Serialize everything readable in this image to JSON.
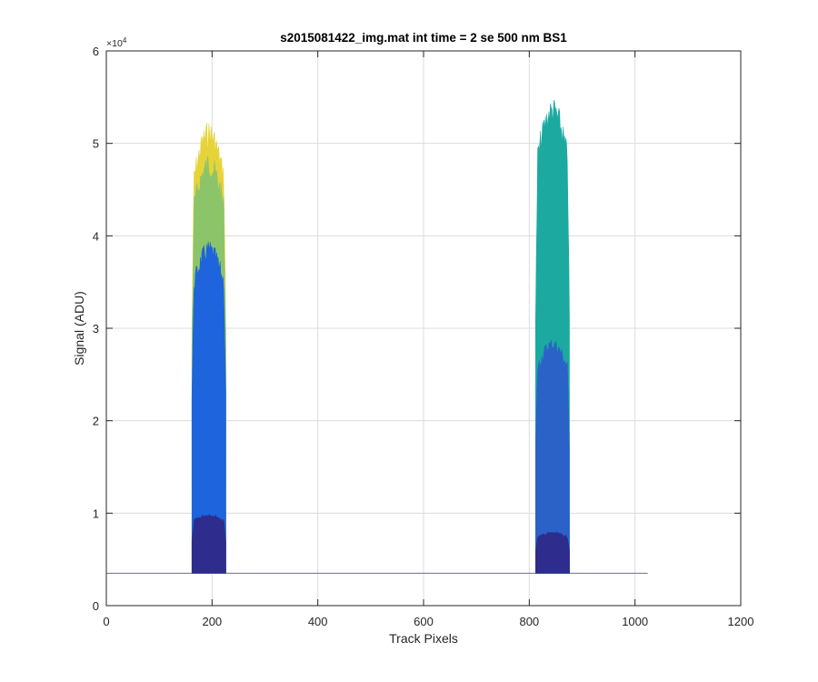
{
  "chart_data": {
    "type": "area",
    "title": "s2015081422_img.mat int time = 2 se  500 nm BS1",
    "xlabel": "Track Pixels",
    "ylabel": "Signal (ADU)",
    "xlim": [
      0,
      1200
    ],
    "ylim": [
      0,
      60000
    ],
    "x_ticks": [
      0,
      200,
      400,
      600,
      800,
      1000,
      1200
    ],
    "x_tick_labels": [
      "0",
      "200",
      "400",
      "600",
      "800",
      "1000",
      "1200"
    ],
    "y_ticks": [
      0,
      10000,
      20000,
      30000,
      40000,
      50000,
      60000
    ],
    "y_tick_labels": [
      "0",
      "1",
      "2",
      "3",
      "4",
      "5",
      "6"
    ],
    "y_exponent_label": "×10",
    "y_exponent_power": "4",
    "grid": true,
    "baseline": 3500,
    "baseline_x_range": [
      1,
      1024
    ],
    "peaks": [
      {
        "x_start": 162,
        "x_end": 226,
        "layers": [
          {
            "color": "#e6d33a",
            "top": 52500
          },
          {
            "color": "#8cc46a",
            "top": 49000
          },
          {
            "color": "#1e64dc",
            "top": 39500
          },
          {
            "color": "#2e2c8c",
            "top": 10000
          }
        ]
      },
      {
        "x_start": 812,
        "x_end": 876,
        "layers": [
          {
            "color": "#1ba9a0",
            "top": 55000
          },
          {
            "color": "#2a62c8",
            "top": 29000
          },
          {
            "color": "#2e2c8c",
            "top": 8000
          }
        ]
      }
    ]
  }
}
